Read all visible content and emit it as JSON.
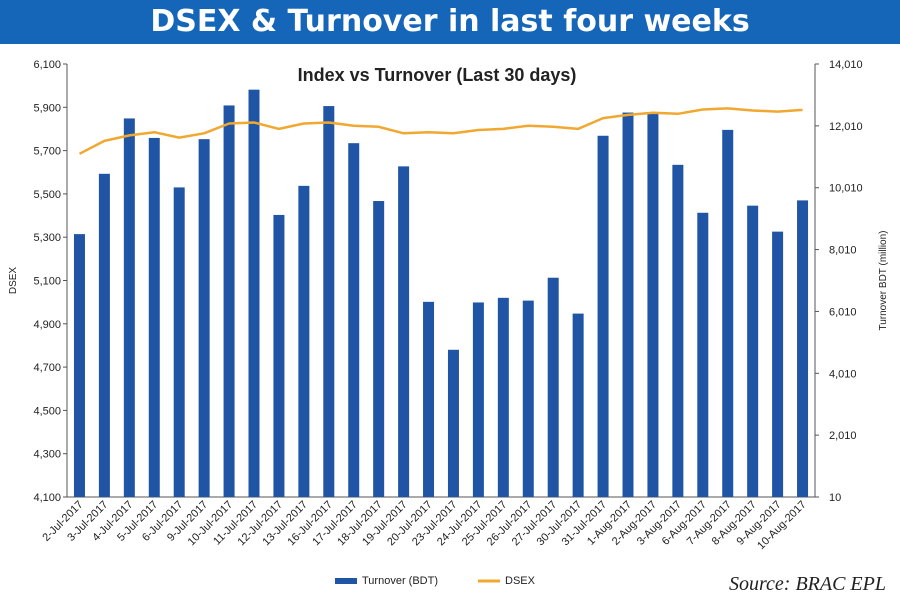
{
  "banner_title": "DSEX & Turnover in last four weeks",
  "source": "Source: BRAC EPL",
  "chart_data": {
    "type": "bar+line",
    "title": "Index vs Turnover (Last 30 days)",
    "ylabel_left": "DSEX",
    "ylabel_right": "Turnover BDT (million)",
    "ylim_left": [
      4100,
      6100
    ],
    "yticks_left": [
      "4,100",
      "4,300",
      "4,500",
      "4,700",
      "4,900",
      "5,100",
      "5,300",
      "5,500",
      "5,700",
      "5,900",
      "6,100"
    ],
    "ylim_right": [
      10,
      14010
    ],
    "yticks_right": [
      "10",
      "2,010",
      "4,010",
      "6,010",
      "8,010",
      "10,010",
      "12,010",
      "14,010"
    ],
    "categories": [
      "2-Jul-2017",
      "3-Jul-2017",
      "4-Jul-2017",
      "5-Jul-2017",
      "6-Jul-2017",
      "9-Jul-2017",
      "10-Jul-2017",
      "11-Jul-2017",
      "12-Jul-2017",
      "13-Jul-2017",
      "16-Jul-2017",
      "17-Jul-2017",
      "18-Jul-2017",
      "19-Jul-2017",
      "20-Jul-2017",
      "23-Jul-2017",
      "24-Jul-2017",
      "25-Jul-2017",
      "26-Jul-2017",
      "27-Jul-2017",
      "30-Jul-2017",
      "31-Jul-2017",
      "1-Aug-2017",
      "2-Aug-2017",
      "3-Aug-2017",
      "6-Aug-2017",
      "7-Aug-2017",
      "8-Aug-2017",
      "9-Aug-2017",
      "10-Aug-2017"
    ],
    "series": [
      {
        "name": "Turnover (BDT)",
        "type": "bar",
        "axis": "right",
        "color": "#2055a5",
        "values": [
          8510,
          10460,
          12250,
          11620,
          10020,
          11580,
          12670,
          13180,
          9130,
          10070,
          12650,
          11450,
          9580,
          10700,
          6320,
          4770,
          6300,
          6450,
          6360,
          7100,
          5940,
          11690,
          12440,
          12420,
          10750,
          9200,
          11880,
          9430,
          8590,
          9600
        ]
      },
      {
        "name": "DSEX",
        "type": "line",
        "axis": "left",
        "color": "#f0a830",
        "values": [
          5685,
          5745,
          5770,
          5785,
          5760,
          5780,
          5825,
          5830,
          5800,
          5825,
          5830,
          5815,
          5810,
          5780,
          5785,
          5780,
          5795,
          5800,
          5815,
          5810,
          5800,
          5850,
          5865,
          5875,
          5870,
          5890,
          5895,
          5885,
          5880,
          5888
        ]
      }
    ],
    "legend_position": "bottom",
    "grid": false
  }
}
